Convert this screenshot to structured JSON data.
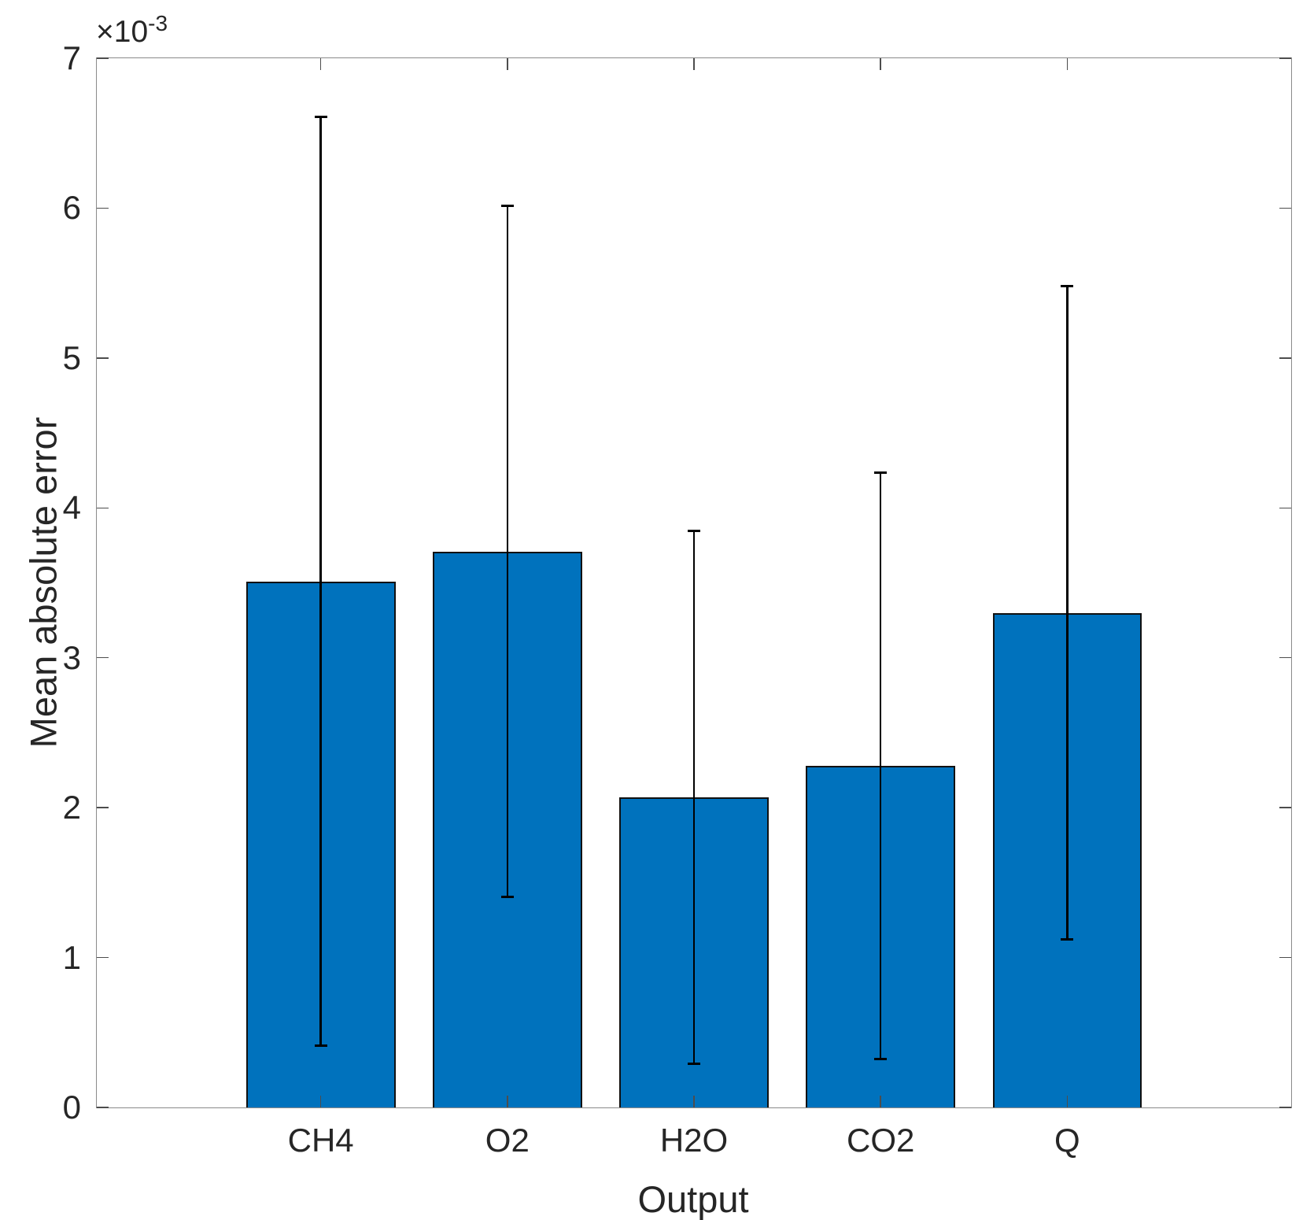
{
  "figure": {
    "background": "#ffffff"
  },
  "labels": {
    "ylabel": "Mean absolute error",
    "xlabel": "Output",
    "offset_base": "×10",
    "offset_exp": "-3"
  },
  "chart_data": {
    "type": "bar",
    "title": "",
    "xlabel": "Output",
    "ylabel": "Mean absolute error",
    "categories": [
      "CH4",
      "O2",
      "H2O",
      "CO2",
      "Q"
    ],
    "values": [
      0.00351,
      0.00371,
      0.00207,
      0.00228,
      0.0033
    ],
    "error_bars": [
      0.0031,
      0.00231,
      0.00178,
      0.00196,
      0.00218
    ],
    "error_bar_low_ends": [
      0.00041,
      0.0014,
      0.00029,
      0.00032,
      0.00112
    ],
    "error_bar_high_ends": [
      0.00661,
      0.00602,
      0.00385,
      0.00424,
      0.00548
    ],
    "y_axis": {
      "min": 0,
      "max": 0.007,
      "tick_labels": [
        "0",
        "1",
        "2",
        "3",
        "4",
        "5",
        "6",
        "7"
      ],
      "offset_text": "×10⁻³"
    },
    "x_positions": [
      1,
      2,
      3,
      4,
      5
    ],
    "xlim": [
      -0.2,
      6.2
    ],
    "bar_width": 0.8,
    "bar_color": "#0072BD",
    "bar_edge_color": "#111111",
    "error_color": "#000000",
    "grid": false,
    "legend": null
  }
}
